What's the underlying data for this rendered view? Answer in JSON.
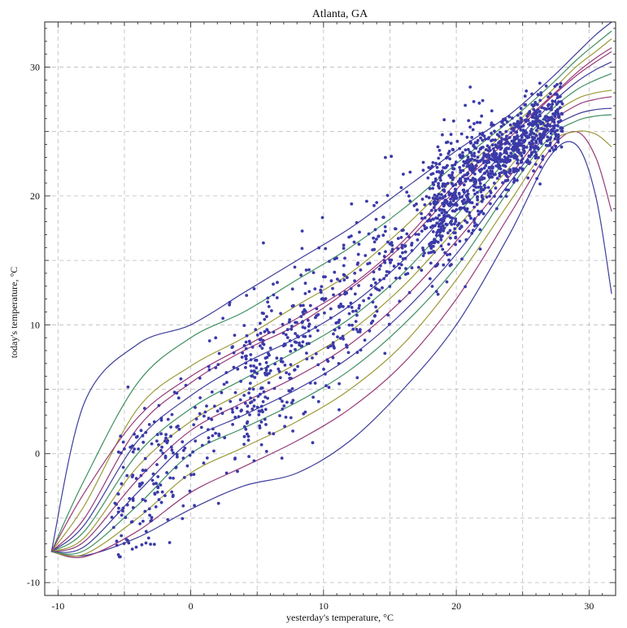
{
  "chart_data": {
    "type": "scatter",
    "title": "Atlanta, GA",
    "xlabel": "yesterday's temperature, °C",
    "ylabel": "today's temperature, °C",
    "xlim": [
      -11,
      32
    ],
    "ylim": [
      -11,
      33.5
    ],
    "x_ticks": [
      -10,
      0,
      10,
      20,
      30
    ],
    "y_ticks": [
      -10,
      0,
      10,
      20,
      30
    ],
    "grid": true,
    "grid_style": "dashed",
    "point_color": "#3b3aa8",
    "curve_colors": [
      "#3d3d9a",
      "#963a78",
      "#9c9a3a",
      "#3f8f60"
    ],
    "quantile_curves": [
      {
        "x": [
          -10.5,
          -8,
          -4,
          0,
          4,
          8,
          12,
          16,
          20,
          24,
          27,
          29,
          30.5,
          31.7
        ],
        "y": [
          -7.6,
          -7.9,
          -6.5,
          -4.3,
          -2.5,
          -1.5,
          1,
          5,
          10,
          17,
          23,
          24,
          20,
          12.4
        ]
      },
      {
        "x": [
          -10.5,
          -8,
          -4,
          0,
          4,
          8,
          12,
          16,
          20,
          24,
          27,
          29,
          30.5,
          31.7
        ],
        "y": [
          -7.6,
          -8.0,
          -6.0,
          -3.0,
          -1.0,
          1,
          3.5,
          7,
          12,
          18.5,
          23.5,
          25,
          23,
          18.8
        ]
      },
      {
        "x": [
          -10.5,
          -8,
          -4,
          0,
          4,
          8,
          12,
          16,
          20,
          24,
          27,
          29,
          30.5,
          31.7
        ],
        "y": [
          -7.6,
          -7.8,
          -5.0,
          -1.5,
          0.5,
          2.5,
          5,
          8.5,
          13.5,
          19.5,
          24,
          25,
          24.8,
          23.8
        ]
      },
      {
        "x": [
          -10.5,
          -8,
          -4,
          0,
          4,
          8,
          12,
          16,
          20,
          24,
          27,
          29,
          30.5,
          31.7
        ],
        "y": [
          -7.6,
          -7.5,
          -4.0,
          0,
          2,
          4,
          6.5,
          10,
          14.5,
          20.5,
          24.5,
          25.8,
          26.2,
          26.3
        ]
      },
      {
        "x": [
          -10.5,
          -8,
          -4,
          0,
          4,
          8,
          12,
          16,
          20,
          24,
          27,
          29,
          30.5,
          31.7
        ],
        "y": [
          -7.6,
          -7.2,
          -3.0,
          1,
          3,
          5,
          7.5,
          11,
          15.5,
          21,
          25,
          26.3,
          26.7,
          26.8
        ]
      },
      {
        "x": [
          -10.5,
          -8,
          -4,
          0,
          4,
          8,
          12,
          16,
          20,
          24,
          27,
          29,
          30.5,
          31.7
        ],
        "y": [
          -7.6,
          -6.8,
          -2.0,
          1.8,
          4,
          6,
          8.5,
          12,
          16.5,
          21.5,
          25.5,
          27,
          27.5,
          27.7
        ]
      },
      {
        "x": [
          -10.5,
          -8,
          -4,
          0,
          4,
          8,
          12,
          16,
          20,
          24,
          27,
          29,
          30.5,
          31.7
        ],
        "y": [
          -7.6,
          -6.5,
          -1.0,
          2.5,
          4.8,
          7,
          9.5,
          13,
          17.5,
          22.2,
          26,
          27.5,
          28,
          28.2
        ]
      },
      {
        "x": [
          -10.5,
          -8,
          -4,
          0,
          4,
          8,
          12,
          16,
          20,
          24,
          27,
          29,
          30.5,
          31.7
        ],
        "y": [
          -7.6,
          -6.0,
          0,
          3.5,
          5.8,
          8,
          10.5,
          14,
          18.5,
          23,
          26.5,
          28.2,
          29,
          29.5
        ]
      },
      {
        "x": [
          -10.5,
          -8,
          -4,
          0,
          4,
          8,
          12,
          16,
          20,
          24,
          27,
          29,
          30.5,
          31.7
        ],
        "y": [
          -7.6,
          -5.5,
          1.0,
          4.5,
          7,
          9,
          11.5,
          15,
          19.5,
          23.8,
          27,
          28.8,
          29.8,
          30.4
        ]
      },
      {
        "x": [
          -10.5,
          -8,
          -4,
          0,
          4,
          8,
          12,
          16,
          20,
          24,
          27,
          29,
          30.5,
          31.7
        ],
        "y": [
          -7.6,
          -5.0,
          2.0,
          5.5,
          8,
          10,
          12.8,
          16.2,
          20.5,
          24.5,
          27.5,
          29.3,
          30.4,
          31.2
        ]
      },
      {
        "x": [
          -10.5,
          -8,
          -4,
          0,
          4,
          8,
          12,
          16,
          20,
          24,
          27,
          29,
          30.5,
          31.7
        ],
        "y": [
          -7.6,
          -4.0,
          3.5,
          6.8,
          9,
          11.5,
          14,
          17.5,
          21.5,
          25.2,
          28,
          30,
          31.2,
          32.2
        ]
      },
      {
        "x": [
          -10.5,
          -8,
          -4,
          0,
          4,
          8,
          12,
          16,
          20,
          24,
          27,
          29,
          30.5,
          31.7
        ],
        "y": [
          -7.6,
          -2.0,
          5.5,
          9.0,
          11,
          13.5,
          16,
          19,
          22.5,
          25.8,
          28.5,
          30.5,
          31.8,
          32.8
        ]
      },
      {
        "x": [
          -10.5,
          -8,
          -4,
          0,
          4,
          8,
          12,
          16,
          20,
          24,
          27,
          29,
          30.5,
          31.7
        ],
        "y": [
          -7.6,
          4.0,
          8.5,
          10.0,
          12.5,
          15,
          17.5,
          20.5,
          23.5,
          26.3,
          29,
          31,
          32.5,
          33.5
        ]
      },
      {
        "x": [
          -10.5,
          -8,
          -4,
          0,
          4,
          8,
          12,
          16,
          20,
          24,
          27,
          29,
          30.5,
          31.7
        ],
        "y": [
          -7.6,
          -3.0,
          2.8,
          6.0,
          8.3,
          10.5,
          13,
          16.5,
          21,
          24.8,
          27.6,
          29.5,
          30.7,
          31.5
        ]
      }
    ]
  }
}
